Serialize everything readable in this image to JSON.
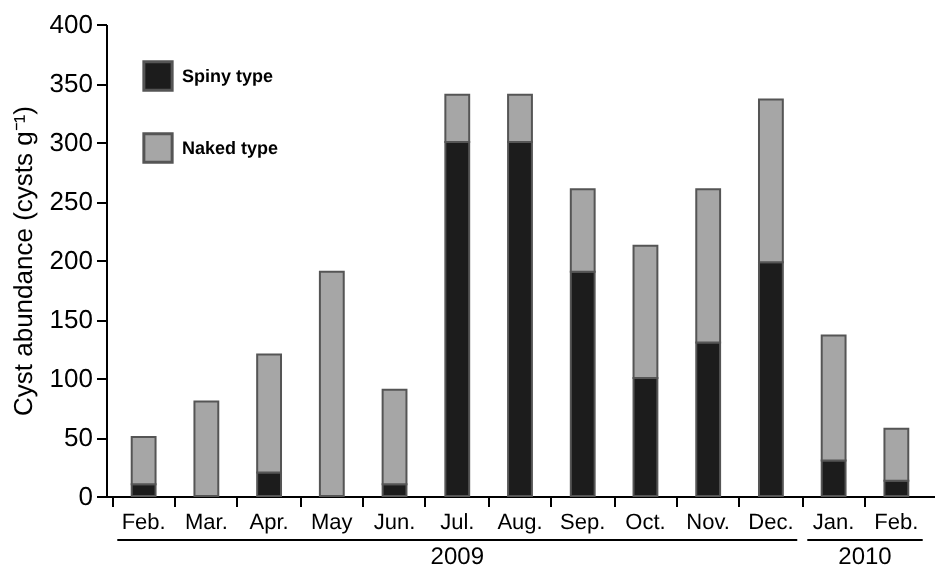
{
  "chart_data": {
    "type": "bar",
    "stacked": true,
    "ylabel": "Cyst abundance (cysts g⁻¹)",
    "categories": [
      "Feb.",
      "Mar.",
      "Apr.",
      "May",
      "Jun.",
      "Jul.",
      "Aug.",
      "Sep.",
      "Oct.",
      "Nov.",
      "Dec.",
      "Jan.",
      "Feb."
    ],
    "series": [
      {
        "name": "Spiny type",
        "color": "#1c1c1c",
        "values": [
          10,
          0,
          20,
          0,
          10,
          300,
          300,
          190,
          100,
          130,
          198,
          30,
          13
        ]
      },
      {
        "name": "Naked type",
        "color": "#a6a6a6",
        "values": [
          40,
          80,
          100,
          190,
          80,
          40,
          40,
          70,
          112,
          130,
          138,
          106,
          44
        ]
      }
    ],
    "ylim": [
      0,
      400
    ],
    "yticks": [
      0,
      50,
      100,
      150,
      200,
      250,
      300,
      350,
      400
    ],
    "grid": false,
    "legend": "top left",
    "annotations": [
      "2009",
      "2010"
    ]
  }
}
